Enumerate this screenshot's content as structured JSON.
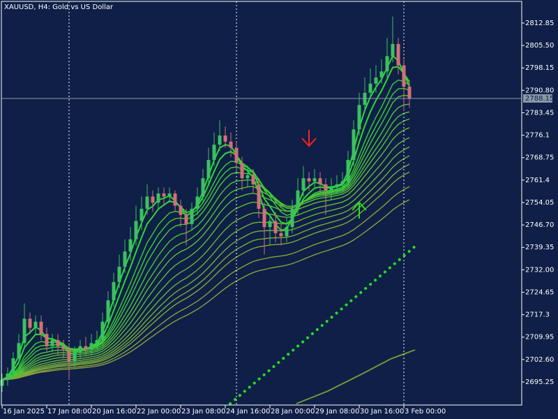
{
  "chart_data": {
    "type": "candlestick",
    "title": "XAUUSD, H4:  Gold vs US Dollar",
    "categories": [
      "16 Jan 2025",
      null,
      null,
      null,
      null,
      null,
      null,
      null,
      "17 Jan 08:00",
      null,
      null,
      null,
      null,
      null,
      null,
      null,
      "20 Jan 16:00",
      null,
      null,
      null,
      null,
      null,
      null,
      null,
      "22 Jan 00:00",
      null,
      null,
      null,
      null,
      null,
      null,
      null,
      "23 Jan 08:00",
      null,
      null,
      null,
      null,
      null,
      null,
      null,
      "24 Jan 16:00",
      null,
      null,
      null,
      null,
      null,
      null,
      null,
      "28 Jan 00:00",
      null,
      null,
      null,
      null,
      null,
      null,
      null,
      "29 Jan 08:00",
      null,
      null,
      null,
      null,
      null,
      null,
      null,
      "30 Jan 16:00",
      null,
      null,
      null,
      null,
      null,
      null,
      null,
      "3 Feb 00:00",
      null
    ],
    "open": [
      2694,
      2696,
      2698,
      2703,
      2708,
      2716,
      2713,
      2715,
      2711,
      2707,
      2709,
      2707,
      2706,
      2702,
      2705,
      2707,
      2706,
      2708,
      2709,
      2715,
      2722,
      2728,
      2733,
      2738,
      2742,
      2748,
      2752,
      2756,
      2754,
      2757,
      2756,
      2757,
      2753,
      2750,
      2747,
      2752,
      2756,
      2762,
      2768,
      2773,
      2776,
      2774,
      2772,
      2767,
      2762,
      2763,
      2760,
      2752,
      2746,
      2748,
      2744,
      2743,
      2746,
      2752,
      2758,
      2762,
      2761,
      2762,
      2760,
      2758,
      2759,
      2760,
      2761,
      2768,
      2778,
      2786,
      2790,
      2793,
      2795,
      2797,
      2802,
      2806,
      2799,
      2792
    ],
    "high": [
      2698,
      2700,
      2705,
      2711,
      2721,
      2718,
      2717,
      2717,
      2713,
      2711,
      2711,
      2709,
      2708,
      2707,
      2709,
      2710,
      2711,
      2712,
      2718,
      2725,
      2731,
      2737,
      2742,
      2746,
      2753,
      2756,
      2760,
      2758,
      2759,
      2759,
      2759,
      2758,
      2755,
      2752,
      2754,
      2759,
      2765,
      2772,
      2777,
      2781,
      2779,
      2777,
      2774,
      2769,
      2766,
      2765,
      2762,
      2754,
      2750,
      2751,
      2747,
      2749,
      2755,
      2762,
      2766,
      2764,
      2765,
      2764,
      2762,
      2762,
      2763,
      2764,
      2771,
      2781,
      2790,
      2795,
      2798,
      2799,
      2801,
      2808,
      2815,
      2808,
      2801,
      2794
    ],
    "low": [
      2692,
      2694,
      2696,
      2701,
      2706,
      2711,
      2711,
      2709,
      2705,
      2705,
      2704,
      2703,
      2696,
      2700,
      2703,
      2704,
      2704,
      2706,
      2707,
      2713,
      2720,
      2726,
      2731,
      2735,
      2740,
      2745,
      2750,
      2751,
      2752,
      2753,
      2754,
      2751,
      2746,
      2740,
      2745,
      2750,
      2754,
      2760,
      2766,
      2771,
      2772,
      2769,
      2764,
      2758,
      2759,
      2757,
      2749,
      2737,
      2740,
      2741,
      2740,
      2741,
      2744,
      2750,
      2756,
      2758,
      2759,
      2757,
      2750,
      2755,
      2757,
      2758,
      2759,
      2766,
      2776,
      2784,
      2788,
      2790,
      2793,
      2795,
      2800,
      2796,
      2784,
      2785
    ],
    "close": [
      2696,
      2698,
      2703,
      2708,
      2716,
      2713,
      2715,
      2711,
      2707,
      2709,
      2707,
      2706,
      2702,
      2705,
      2707,
      2706,
      2708,
      2709,
      2715,
      2722,
      2728,
      2733,
      2738,
      2742,
      2748,
      2752,
      2756,
      2754,
      2757,
      2756,
      2757,
      2753,
      2750,
      2747,
      2752,
      2756,
      2762,
      2768,
      2773,
      2776,
      2774,
      2772,
      2767,
      2762,
      2763,
      2760,
      2752,
      2746,
      2748,
      2744,
      2743,
      2746,
      2752,
      2758,
      2762,
      2761,
      2762,
      2760,
      2758,
      2759,
      2760,
      2761,
      2768,
      2778,
      2786,
      2790,
      2793,
      2795,
      2797,
      2802,
      2806,
      2799,
      2792,
      2788
    ],
    "up_color": "#3cc060",
    "down_color": "#d07078",
    "current_price": 2788.15,
    "ylim": [
      2687.7,
      2819.94
    ],
    "yticks": [
      2812.85,
      {
        "value": 2805.5,
        "label": "2805.50"
      },
      2798.15,
      {
        "value": 2790.8,
        "label": "2790.80"
      },
      2783.45,
      2776.1,
      2768.75,
      2761.4,
      2754.05,
      {
        "value": 2746.7,
        "label": "2746.70"
      },
      2739.35,
      {
        "value": 2732,
        "label": "2732.00"
      },
      2724.65,
      2717.3,
      2709.95,
      {
        "value": 2702.6,
        "label": "2702.60"
      },
      2695.25
    ]
  }
}
